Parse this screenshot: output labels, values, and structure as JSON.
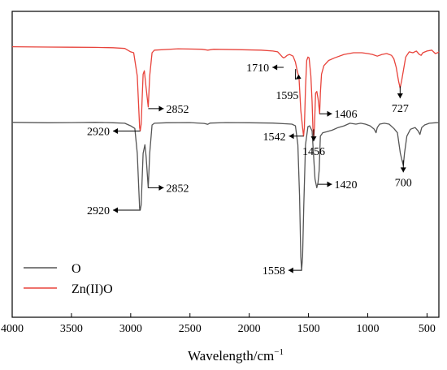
{
  "chart_data": {
    "type": "line",
    "xlabel_text": "Wavelength/cm",
    "xlabel_sup": "−1",
    "ylabel": "",
    "xlim": [
      4000,
      400
    ],
    "x_reversed": true,
    "xticks": [
      4000,
      3500,
      3000,
      2500,
      2000,
      1500,
      1000,
      500
    ],
    "y_ticks_shown": false,
    "grid": false,
    "legend_position": "bottom-left",
    "series": [
      {
        "name": "O",
        "color": "#555555",
        "points": [
          [
            4000,
            0.58
          ],
          [
            3700,
            0.578
          ],
          [
            3500,
            0.579
          ],
          [
            3300,
            0.58
          ],
          [
            3150,
            0.578
          ],
          [
            3050,
            0.575
          ],
          [
            3000,
            0.56
          ],
          [
            2965,
            0.545
          ],
          [
            2945,
            0.4
          ],
          [
            2925,
            0.08
          ],
          [
            2920,
            0.07
          ],
          [
            2912,
            0.1
          ],
          [
            2895,
            0.4
          ],
          [
            2880,
            0.45
          ],
          [
            2870,
            0.38
          ],
          [
            2852,
            0.2
          ],
          [
            2840,
            0.4
          ],
          [
            2820,
            0.565
          ],
          [
            2800,
            0.575
          ],
          [
            2700,
            0.578
          ],
          [
            2500,
            0.579
          ],
          [
            2380,
            0.574
          ],
          [
            2350,
            0.569
          ],
          [
            2330,
            0.576
          ],
          [
            2200,
            0.579
          ],
          [
            2000,
            0.578
          ],
          [
            1800,
            0.576
          ],
          [
            1700,
            0.572
          ],
          [
            1640,
            0.57
          ],
          [
            1610,
            0.56
          ],
          [
            1590,
            0.45
          ],
          [
            1575,
            0.15
          ],
          [
            1565,
            -0.2
          ],
          [
            1558,
            -0.28
          ],
          [
            1550,
            -0.2
          ],
          [
            1540,
            0.1
          ],
          [
            1525,
            0.45
          ],
          [
            1505,
            0.555
          ],
          [
            1490,
            0.56
          ],
          [
            1470,
            0.53
          ],
          [
            1445,
            0.25
          ],
          [
            1430,
            0.2
          ],
          [
            1420,
            0.23
          ],
          [
            1410,
            0.3
          ],
          [
            1400,
            0.5
          ],
          [
            1380,
            0.52
          ],
          [
            1350,
            0.525
          ],
          [
            1300,
            0.535
          ],
          [
            1250,
            0.55
          ],
          [
            1200,
            0.56
          ],
          [
            1150,
            0.575
          ],
          [
            1100,
            0.57
          ],
          [
            1060,
            0.575
          ],
          [
            1020,
            0.57
          ],
          [
            980,
            0.56
          ],
          [
            945,
            0.54
          ],
          [
            930,
            0.52
          ],
          [
            920,
            0.55
          ],
          [
            900,
            0.57
          ],
          [
            860,
            0.575
          ],
          [
            820,
            0.57
          ],
          [
            780,
            0.545
          ],
          [
            750,
            0.52
          ],
          [
            725,
            0.4
          ],
          [
            715,
            0.37
          ],
          [
            700,
            0.33
          ],
          [
            690,
            0.4
          ],
          [
            670,
            0.5
          ],
          [
            640,
            0.54
          ],
          [
            600,
            0.55
          ],
          [
            575,
            0.53
          ],
          [
            560,
            0.51
          ],
          [
            545,
            0.55
          ],
          [
            520,
            0.565
          ],
          [
            480,
            0.575
          ],
          [
            430,
            0.578
          ],
          [
            400,
            0.579
          ]
        ]
      },
      {
        "name": "Zn(II)O",
        "color": "#e8433b",
        "points": [
          [
            4000,
            1.02
          ],
          [
            3700,
            1.018
          ],
          [
            3500,
            1.017
          ],
          [
            3300,
            1.016
          ],
          [
            3150,
            1.014
          ],
          [
            3050,
            1.01
          ],
          [
            3000,
            0.99
          ],
          [
            2975,
            0.985
          ],
          [
            2945,
            0.85
          ],
          [
            2925,
            0.55
          ],
          [
            2920,
            0.53
          ],
          [
            2912,
            0.57
          ],
          [
            2895,
            0.86
          ],
          [
            2885,
            0.88
          ],
          [
            2870,
            0.78
          ],
          [
            2852,
            0.67
          ],
          [
            2840,
            0.85
          ],
          [
            2820,
            0.985
          ],
          [
            2800,
            1.0
          ],
          [
            2600,
            1.008
          ],
          [
            2400,
            1.005
          ],
          [
            2350,
            1.0
          ],
          [
            2300,
            1.005
          ],
          [
            2100,
            1.003
          ],
          [
            1900,
            1.0
          ],
          [
            1800,
            0.995
          ],
          [
            1760,
            0.99
          ],
          [
            1740,
            0.975
          ],
          [
            1720,
            0.96
          ],
          [
            1710,
            0.955
          ],
          [
            1700,
            0.958
          ],
          [
            1680,
            0.97
          ],
          [
            1660,
            0.975
          ],
          [
            1630,
            0.965
          ],
          [
            1610,
            0.93
          ],
          [
            1595,
            0.88
          ],
          [
            1580,
            0.84
          ],
          [
            1565,
            0.65
          ],
          [
            1550,
            0.55
          ],
          [
            1542,
            0.5
          ],
          [
            1535,
            0.55
          ],
          [
            1525,
            0.78
          ],
          [
            1515,
            0.94
          ],
          [
            1505,
            0.96
          ],
          [
            1495,
            0.955
          ],
          [
            1480,
            0.85
          ],
          [
            1470,
            0.7
          ],
          [
            1463,
            0.55
          ],
          [
            1456,
            0.49
          ],
          [
            1450,
            0.55
          ],
          [
            1440,
            0.75
          ],
          [
            1430,
            0.76
          ],
          [
            1420,
            0.72
          ],
          [
            1410,
            0.66
          ],
          [
            1406,
            0.63
          ],
          [
            1400,
            0.75
          ],
          [
            1390,
            0.86
          ],
          [
            1370,
            0.91
          ],
          [
            1330,
            0.94
          ],
          [
            1280,
            0.955
          ],
          [
            1200,
            0.975
          ],
          [
            1120,
            0.985
          ],
          [
            1050,
            0.985
          ],
          [
            1000,
            0.98
          ],
          [
            960,
            0.975
          ],
          [
            920,
            0.965
          ],
          [
            880,
            0.975
          ],
          [
            840,
            0.98
          ],
          [
            800,
            0.97
          ],
          [
            780,
            0.95
          ],
          [
            760,
            0.9
          ],
          [
            740,
            0.82
          ],
          [
            727,
            0.78
          ],
          [
            715,
            0.82
          ],
          [
            700,
            0.88
          ],
          [
            680,
            0.96
          ],
          [
            650,
            0.99
          ],
          [
            620,
            0.985
          ],
          [
            590,
            0.995
          ],
          [
            565,
            0.975
          ],
          [
            550,
            0.97
          ],
          [
            535,
            0.985
          ],
          [
            500,
            0.995
          ],
          [
            460,
            1.0
          ],
          [
            430,
            0.98
          ],
          [
            410,
            0.985
          ],
          [
            400,
            0.99
          ]
        ]
      }
    ],
    "annotations": [
      {
        "series": "Zn(II)O",
        "x": 1710,
        "label": "1710",
        "arrow": "left"
      },
      {
        "series": "Zn(II)O",
        "x": 2852,
        "label": "2852",
        "arrow": "right"
      },
      {
        "series": "Zn(II)O",
        "x": 2920,
        "label": "2920",
        "arrow": "left"
      },
      {
        "series": "Zn(II)O",
        "x": 1595,
        "label": "1595",
        "arrow": "down-left"
      },
      {
        "series": "Zn(II)O",
        "x": 1542,
        "label": "1542",
        "arrow": "left"
      },
      {
        "series": "Zn(II)O",
        "x": 1456,
        "label": "1456",
        "arrow": "down"
      },
      {
        "series": "Zn(II)O",
        "x": 1406,
        "label": "1406",
        "arrow": "right"
      },
      {
        "series": "Zn(II)O",
        "x": 727,
        "label": "727",
        "arrow": "down"
      },
      {
        "series": "O",
        "x": 2852,
        "label": "2852",
        "arrow": "right"
      },
      {
        "series": "O",
        "x": 2920,
        "label": "2920",
        "arrow": "left"
      },
      {
        "series": "O",
        "x": 1420,
        "label": "1420",
        "arrow": "right"
      },
      {
        "series": "O",
        "x": 1558,
        "label": "1558",
        "arrow": "left"
      },
      {
        "series": "O",
        "x": 700,
        "label": "700",
        "arrow": "down"
      }
    ]
  }
}
